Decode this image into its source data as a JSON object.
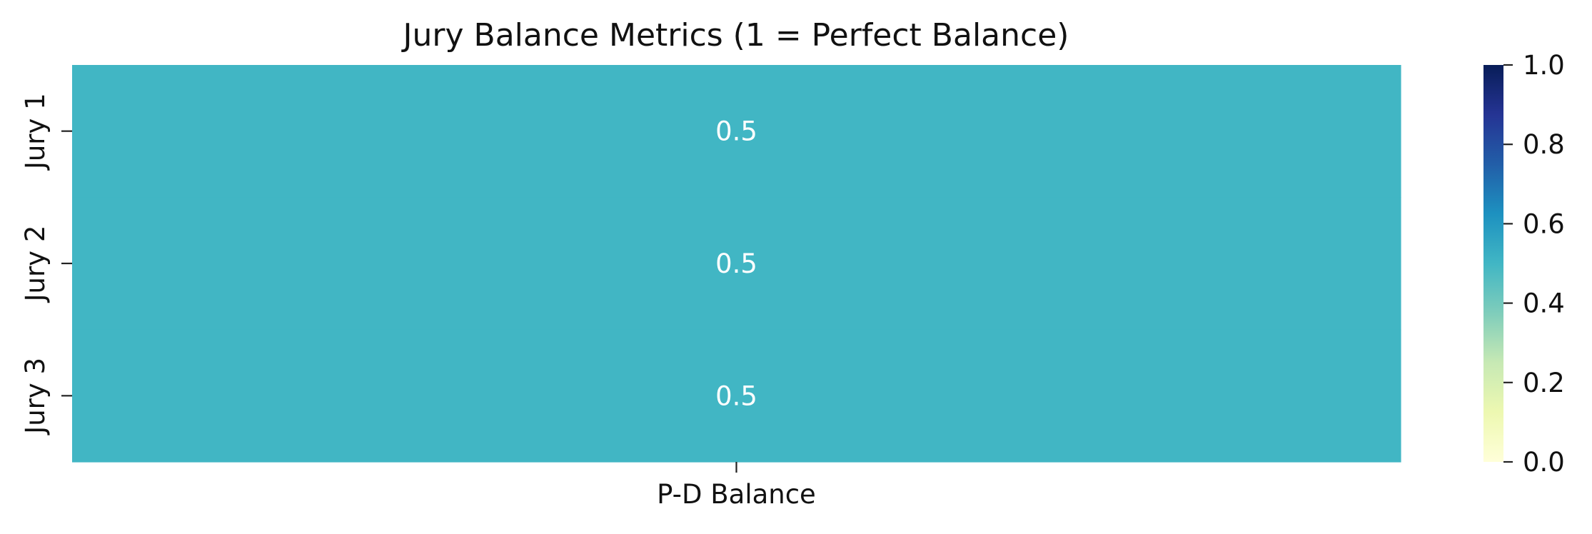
{
  "chart_data": {
    "type": "heatmap",
    "title": "Jury Balance Metrics (1 = Perfect Balance)",
    "rows": [
      "Jury 1",
      "Jury 2",
      "Jury 3"
    ],
    "columns": [
      "P-D Balance"
    ],
    "values": [
      [
        0.5
      ],
      [
        0.5
      ],
      [
        0.5
      ]
    ],
    "annotations": [
      [
        "0.5"
      ],
      [
        "0.5"
      ],
      [
        "0.5"
      ]
    ],
    "xlabel": "",
    "ylabel": "",
    "colormap": "YlGnBu",
    "colorbar": {
      "range": [
        0,
        1
      ],
      "ticks": [
        "0.0",
        "0.2",
        "0.4",
        "0.6",
        "0.8",
        "1.0"
      ]
    },
    "grid": false
  }
}
